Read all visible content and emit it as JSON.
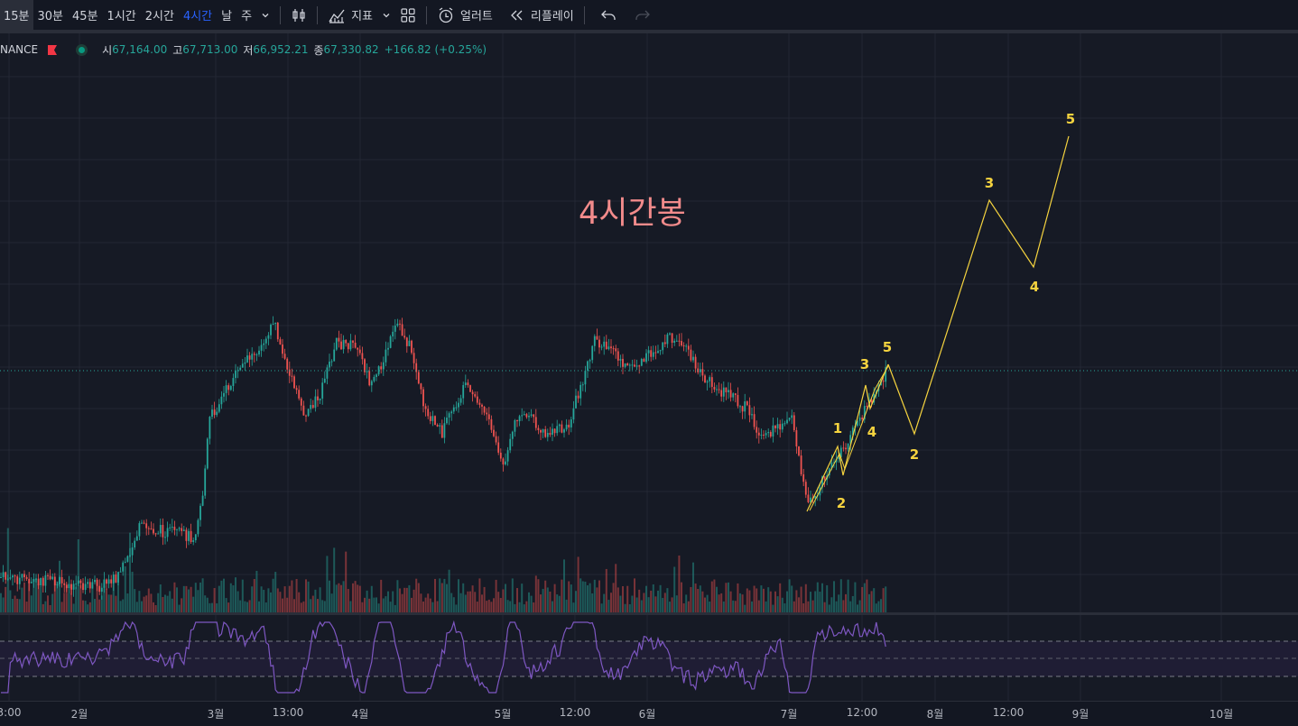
{
  "toolbar": {
    "intervals": [
      "15분",
      "30분",
      "45분",
      "1시간",
      "2시간",
      "4시간",
      "날",
      "주"
    ],
    "active_interval": "4시간",
    "indicators_label": "지표",
    "alert_label": "얼러트",
    "replay_label": "리플레이",
    "icons": [
      "chevron-down-icon",
      "candles-icon",
      "indicators-icon",
      "templates-icon",
      "alarm-clock-icon",
      "replay-icon",
      "undo-icon",
      "redo-icon"
    ]
  },
  "legend": {
    "symbol": "NANCE",
    "open_label": "시",
    "open_value": "67,164.00",
    "high_label": "고",
    "high_value": "67,713.00",
    "low_label": "저",
    "low_value": "66,952.21",
    "close_label": "종",
    "close_value": "67,330.82",
    "change": "+166.82 (+0.25%)"
  },
  "annotation_title": "4시간봉",
  "wave_labels": {
    "small_1": "1",
    "small_2": "2",
    "small_3": "3",
    "small_4": "4",
    "small_5": "5",
    "big_2": "2",
    "big_3": "3",
    "big_4": "4",
    "big_5": "5"
  },
  "xaxis": {
    "labels": [
      "3:00",
      "2월",
      "3월",
      "13:00",
      "4월",
      "5월",
      "12:00",
      "6월",
      "7월",
      "12:00",
      "8월",
      "12:00",
      "9월",
      "10월"
    ]
  },
  "colors": {
    "background": "#161a25",
    "up": "#26a69a",
    "down": "#ef5350",
    "wave": "#f5d33f",
    "rsi": "#7e57c2",
    "title": "#f28b8b"
  }
}
